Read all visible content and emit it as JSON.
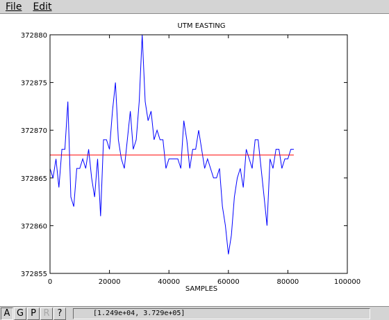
{
  "menu": {
    "file": "File",
    "edit": "Edit"
  },
  "toolbar": {
    "buttons": [
      "A",
      "G",
      "P",
      "R",
      "?"
    ],
    "coord_readout": "[1.249e+04, 3.729e+05]"
  },
  "colors": {
    "trace": "#0000ff",
    "mean_line": "#ff0000",
    "frame": "#000000"
  },
  "chart_data": {
    "type": "line",
    "title": "UTM EASTING",
    "xlabel": "SAMPLES",
    "ylabel": "",
    "xlim": [
      0,
      100000
    ],
    "ylim": [
      372855,
      372880
    ],
    "xticks": [
      0,
      20000,
      40000,
      60000,
      80000,
      100000
    ],
    "xtick_labels": [
      "0",
      "20000",
      "40000",
      "60000",
      "80000",
      "100000"
    ],
    "yticks": [
      372855,
      372860,
      372865,
      372870,
      372875,
      372880
    ],
    "ytick_labels": [
      "372855",
      "372860",
      "372865",
      "372870",
      "372875",
      "372880"
    ],
    "grid": false,
    "series": [
      {
        "values_x": [
          0,
          1000,
          2000,
          3000,
          4000,
          5000,
          6000,
          7000,
          8000,
          9000,
          10000,
          11000,
          12000,
          13000,
          14000,
          15000,
          16000,
          17000,
          18000,
          19000,
          20000,
          21000,
          22000,
          23000,
          24000,
          25000,
          26000,
          27000,
          28000,
          29000,
          30000,
          31000,
          32000,
          33000,
          34000,
          35000,
          36000,
          37000,
          38000,
          39000,
          40000,
          41000,
          42000,
          43000,
          44000,
          45000,
          46000,
          47000,
          48000,
          49000,
          50000,
          51000,
          52000,
          53000,
          54000,
          55000,
          56000,
          57000,
          58000,
          59000,
          60000,
          61000,
          62000,
          63000,
          64000,
          65000,
          66000,
          67000,
          68000,
          69000,
          70000,
          71000,
          72000,
          73000,
          74000,
          75000,
          76000,
          77000,
          78000,
          79000,
          80000,
          81000,
          82000
        ],
        "values_y": [
          372866,
          372865,
          372867,
          372864,
          372868,
          372868,
          372873,
          372863,
          372862,
          372866,
          372866,
          372867,
          372866,
          372868,
          372865,
          372863,
          372867,
          372861,
          372869,
          372869,
          372868,
          372872,
          372875,
          372869,
          372867,
          372866,
          372869,
          372872,
          372868,
          372869,
          372873,
          372880,
          372873,
          372871,
          372872,
          372869,
          372870,
          372869,
          372869,
          372866,
          372867,
          372867,
          372867,
          372867,
          372866,
          372871,
          372869,
          372866,
          372868,
          372868,
          372870,
          372868,
          372866,
          372867,
          372866,
          372865,
          372865,
          372866,
          372862,
          372860,
          372857,
          372859,
          372863,
          372865,
          372866,
          372864,
          372868,
          372867,
          372866,
          372869,
          372869,
          372866,
          372863,
          372860,
          372867,
          372866,
          372868,
          372868,
          372866,
          372867,
          372867,
          372868,
          372868
        ]
      }
    ],
    "mean_line": 372867.4
  }
}
